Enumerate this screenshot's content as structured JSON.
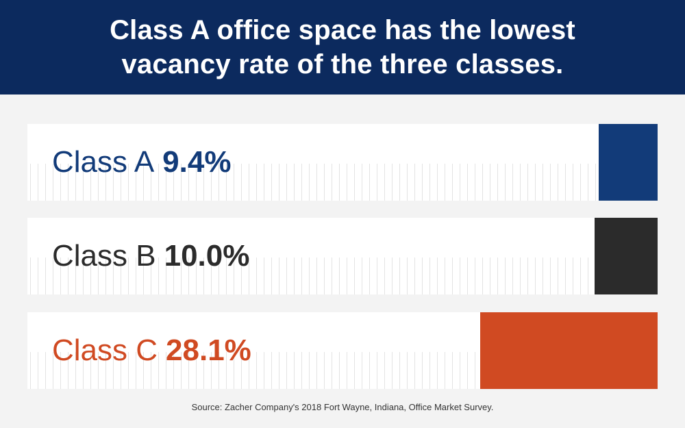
{
  "header": {
    "title_line1": "Class A office space has the lowest",
    "title_line2": "vacancy rate of the three classes."
  },
  "chart_data": {
    "type": "bar",
    "title": "Class A office space has the lowest vacancy rate of the three classes.",
    "orientation": "horizontal",
    "categories": [
      "Class A",
      "Class B",
      "Class C"
    ],
    "values": [
      9.4,
      10.0,
      28.1
    ],
    "value_labels": [
      "9.4%",
      "10.0%",
      "28.1%"
    ],
    "unit": "%",
    "colors": [
      "#123b79",
      "#2b2b2b",
      "#d04a22"
    ],
    "xlim": [
      0,
      100
    ],
    "grid": false,
    "legend": "none"
  },
  "source": "Source: Zacher Company's 2018 Fort Wayne, Indiana, Office Market Survey."
}
